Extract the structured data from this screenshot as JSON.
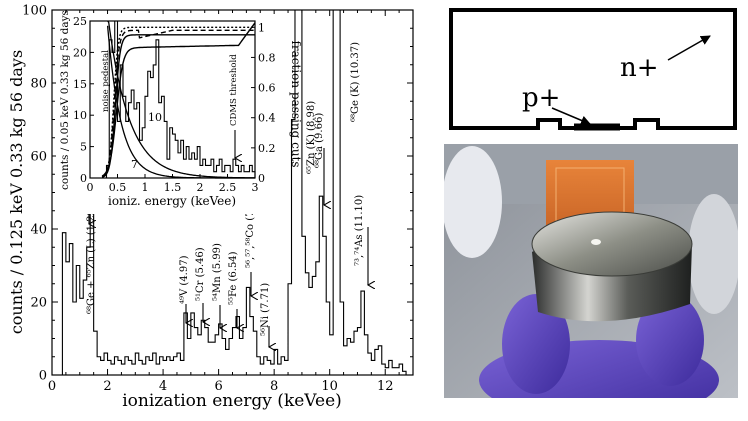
{
  "chart_data": [
    {
      "type": "line",
      "ylabel": "counts / 0.125 keV  0.33 kg  56 days",
      "xlabel": "ionization energy (keVee)",
      "xlim": [
        0,
        13
      ],
      "ylim": [
        0,
        100
      ],
      "xticks": [
        "0",
        "2",
        "4",
        "6",
        "8",
        "10",
        "12"
      ],
      "yticks": [
        "0",
        "20",
        "40",
        "60",
        "80",
        "100"
      ],
      "series": [
        {
          "values_note": "histogram, bin width 0.125 keV, bin left edges from 0.375",
          "x": [
            0.375,
            0.5,
            0.625,
            0.75,
            0.875,
            1.0,
            1.125,
            1.25,
            1.375,
            1.5,
            1.625,
            1.75,
            1.875,
            2.0,
            2.125,
            2.25,
            2.375,
            2.5,
            2.625,
            2.75,
            2.875,
            3.0,
            3.125,
            3.25,
            3.375,
            3.5,
            3.625,
            3.75,
            3.875,
            4.0,
            4.125,
            4.25,
            4.375,
            4.5,
            4.625,
            4.75,
            4.875,
            5.0,
            5.125,
            5.25,
            5.375,
            5.5,
            5.625,
            5.75,
            5.875,
            6.0,
            6.125,
            6.25,
            6.375,
            6.5,
            6.625,
            6.75,
            6.875,
            7.0,
            7.125,
            7.25,
            7.375,
            7.5,
            7.625,
            7.75,
            7.875,
            8.0,
            8.125,
            8.25,
            8.375,
            8.5,
            8.625,
            8.75,
            8.875,
            9.0,
            9.125,
            9.25,
            9.375,
            9.5,
            9.625,
            9.75,
            9.875,
            10.0,
            10.125,
            10.25,
            10.375,
            10.5,
            10.625,
            10.75,
            10.875,
            11.0,
            11.125,
            11.25,
            11.375,
            11.5,
            11.625,
            11.75,
            11.875,
            12.0,
            12.125,
            12.25,
            12.375,
            12.5,
            12.625
          ],
          "values": [
            39,
            31,
            36,
            20,
            30,
            21,
            26,
            35,
            47,
            12,
            5,
            4,
            6,
            4,
            3,
            5,
            4,
            3,
            5,
            4,
            3,
            6,
            4,
            3,
            5,
            4,
            6,
            3,
            5,
            4,
            5,
            4,
            5,
            6,
            4,
            17,
            10,
            17,
            13,
            11,
            15,
            13,
            9,
            9,
            11,
            14,
            10,
            7,
            10,
            13,
            16,
            10,
            13,
            24,
            16,
            12,
            5,
            3,
            5,
            4,
            3,
            7,
            3,
            5,
            4,
            25,
            70,
            100,
            100,
            38,
            28,
            24,
            27,
            31,
            49,
            38,
            20,
            11,
            100,
            100,
            20,
            8,
            10,
            9,
            12,
            13,
            23,
            11,
            6,
            4,
            7,
            8,
            3,
            2,
            4,
            2,
            2,
            3,
            1
          ]
        }
      ],
      "annotations": [
        {
          "text": "⁶⁸Ge + ⁶⁵Zn (L) (1.29+1.1)",
          "x": 1.3
        },
        {
          "text": "⁴⁹V (4.97)",
          "x": 4.97
        },
        {
          "text": "⁵¹Cr (5.46)",
          "x": 5.46
        },
        {
          "text": "⁵⁴Mn (5.99)",
          "x": 5.99
        },
        {
          "text": "⁵⁵Fe (6.54)",
          "x": 6.54
        },
        {
          "text": "⁵⁶,⁵⁷,⁵⁸Co (7.11)",
          "x": 7.11
        },
        {
          "text": "⁵⁶Ni (7.71)",
          "x": 7.71
        },
        {
          "text": "⁶⁵Zn (K) (8.98)",
          "x": 8.98
        },
        {
          "text": "⁶⁸Ga (9.66)",
          "x": 9.66
        },
        {
          "text": "⁶⁸Ge (K) (10.37)",
          "x": 10.37
        },
        {
          "text": "⁷³,⁷⁴As (11.10)",
          "x": 11.1
        }
      ]
    },
    {
      "type": "line",
      "ylabel": "counts / 0.05 keV 0.33 kg 56 days",
      "ylabel_right": "fraction passing cuts",
      "xlabel": "ioniz. energy (keVee)",
      "xlim": [
        0,
        3
      ],
      "ylim": [
        0,
        25
      ],
      "ylim_right": [
        0,
        1
      ],
      "xticks": [
        "0",
        "0.5",
        "1",
        "1.5",
        "2",
        "2.5",
        "3"
      ],
      "yticks": [
        "0",
        "5",
        "10",
        "15",
        "20",
        "25"
      ],
      "yticks_right": [
        "0",
        "0.2",
        "0.4",
        "0.6",
        "0.8",
        "1"
      ],
      "labels": {
        "noise_pedestal": "noise pedestal",
        "cdms_threshold": "CDMS threshold",
        "curve_7": "7",
        "curve_10": "10"
      },
      "series": [
        {
          "x": [
            0.3,
            0.35,
            0.4,
            0.45,
            0.5,
            0.55,
            0.6,
            0.65,
            0.7,
            0.75,
            0.8,
            0.85,
            0.9,
            0.95,
            1.0,
            1.05,
            1.1,
            1.15,
            1.2,
            1.25,
            1.3,
            1.35,
            1.4,
            1.45,
            1.5,
            1.55,
            1.6,
            1.65,
            1.7,
            1.75,
            1.8,
            1.85,
            1.9,
            1.95,
            2.0,
            2.05,
            2.1,
            2.15,
            2.2,
            2.25,
            2.3,
            2.35,
            2.4,
            2.45,
            2.5,
            2.55,
            2.6,
            2.65,
            2.7,
            2.75,
            2.8,
            2.85,
            2.9,
            2.95
          ],
          "values": [
            2,
            22,
            20,
            25,
            9,
            18,
            13,
            9,
            12,
            14,
            11,
            12,
            6,
            8,
            13,
            17,
            16,
            18,
            22,
            12,
            13,
            9,
            3,
            8,
            7,
            6,
            4,
            6,
            3,
            5,
            3,
            4,
            3,
            5,
            2,
            3,
            2,
            2,
            3,
            1,
            2,
            3,
            1,
            2,
            2,
            1,
            3,
            2,
            1,
            2,
            1,
            1,
            2,
            1
          ]
        }
      ]
    }
  ],
  "diagram": {
    "label_p": "p+",
    "label_n": "n+"
  },
  "photo": {
    "subject": "germanium detector crystal held in purple-gloved hand"
  }
}
